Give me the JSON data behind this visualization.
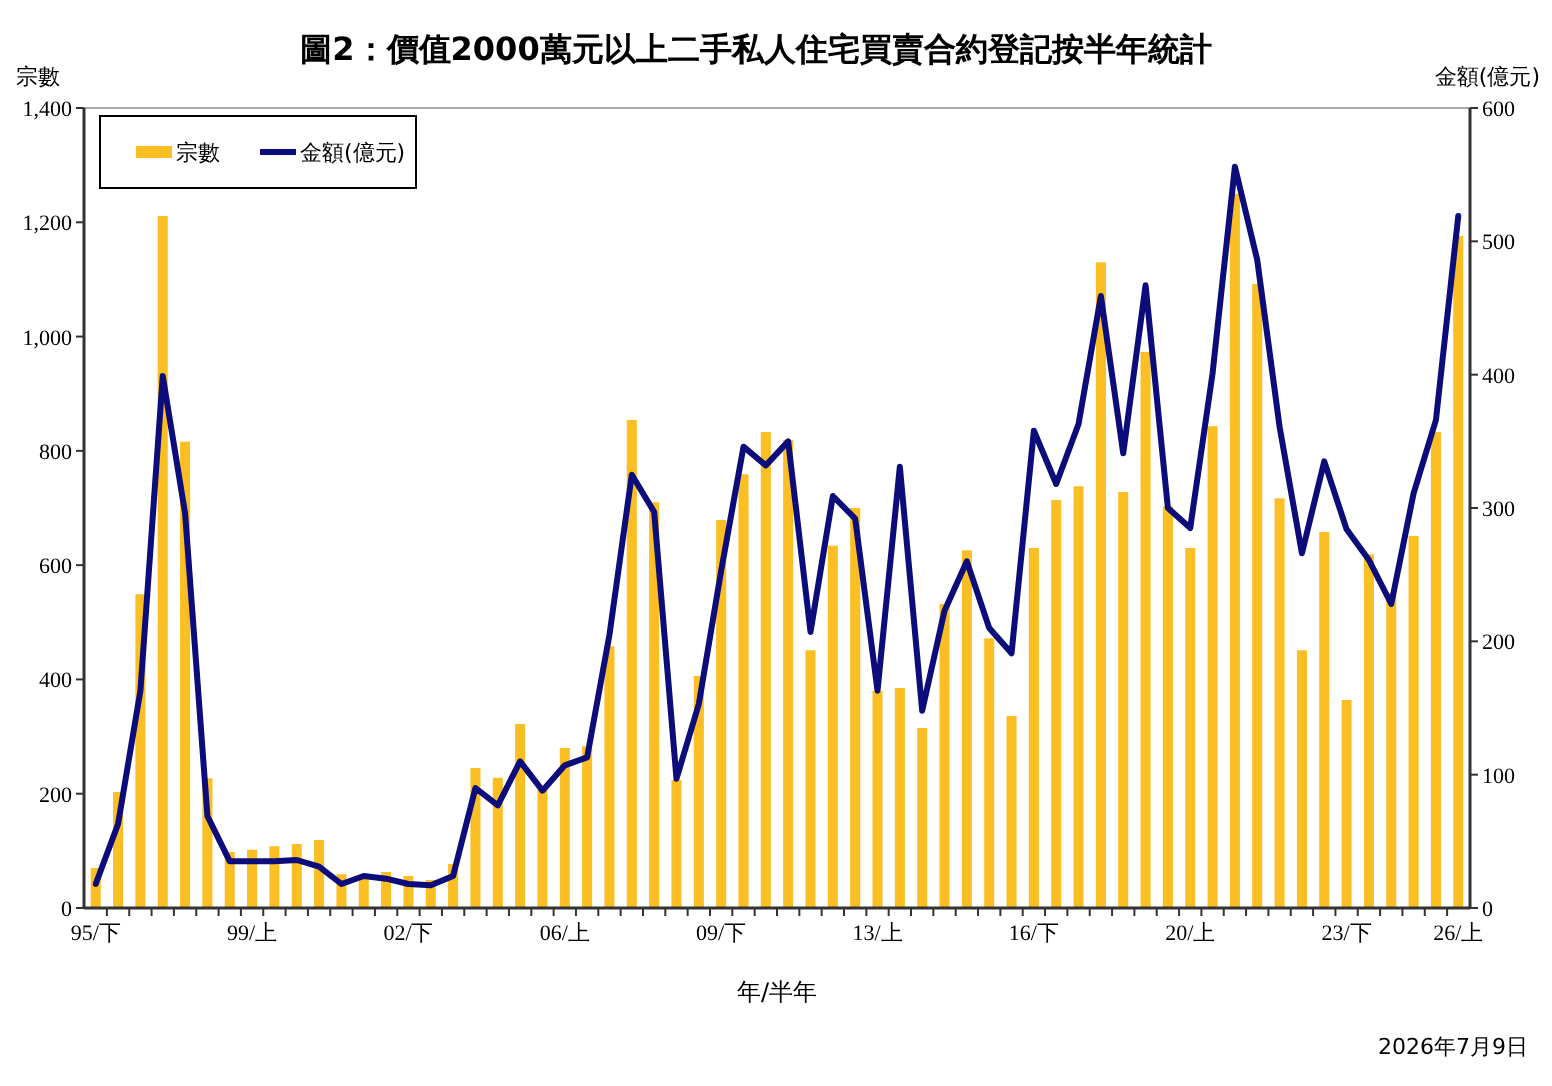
{
  "chart_data": {
    "type": "bar",
    "title": "圖2：價值2000萬元以上二手私人住宅買賣合約登記按半年統計",
    "xlabel": "年/半年",
    "ylabel": "宗數",
    "y2label": "金額(億元)",
    "categories": [
      "95/下",
      null,
      null,
      null,
      null,
      null,
      null,
      "99/上",
      null,
      null,
      null,
      null,
      null,
      null,
      "02/下",
      null,
      null,
      null,
      null,
      null,
      null,
      "06/上",
      null,
      null,
      null,
      null,
      null,
      null,
      "09/下",
      null,
      null,
      null,
      null,
      null,
      null,
      "13/上",
      null,
      null,
      null,
      null,
      null,
      null,
      "16/下",
      null,
      null,
      null,
      null,
      null,
      null,
      "20/上",
      null,
      null,
      null,
      null,
      null,
      null,
      "23/下",
      null,
      null,
      null,
      null,
      "26/上"
    ],
    "series": [
      {
        "name": "宗數",
        "color": "#fbbf24",
        "values": [
          70,
          203,
          549,
          1211,
          816,
          227,
          98,
          102,
          108,
          112,
          119,
          59,
          56,
          63,
          56,
          49,
          77,
          245,
          228,
          322,
          207,
          280,
          283,
          458,
          854,
          710,
          224,
          406,
          679,
          759,
          833,
          819,
          451,
          634,
          700,
          380,
          385,
          315,
          532,
          626,
          472,
          336,
          630,
          714,
          738,
          1130,
          728,
          973,
          703,
          630,
          843,
          1250,
          1092,
          717,
          451,
          658,
          364,
          619,
          551,
          651,
          833,
          1176
        ]
      },
      {
        "name": "金額(億元)",
        "type": "line",
        "axis": "y2",
        "color": "#0c0c7a",
        "values": [
          18,
          63,
          163,
          399,
          296,
          69,
          35,
          35,
          35,
          36,
          31,
          18,
          24,
          22,
          18,
          17,
          24,
          90,
          77,
          110,
          88,
          107,
          113,
          205,
          325,
          297,
          97,
          153,
          253,
          346,
          332,
          350,
          207,
          309,
          292,
          163,
          331,
          148,
          223,
          260,
          210,
          191,
          358,
          318,
          363,
          459,
          341,
          467,
          300,
          285,
          401,
          556,
          486,
          361,
          266,
          335,
          284,
          261,
          228,
          311,
          366,
          519
        ]
      }
    ],
    "ylim": [
      0,
      1400
    ],
    "yticks": [
      0,
      200,
      400,
      600,
      800,
      {
        "value": 1000,
        "label": "1,000"
      },
      {
        "value": 1200,
        "label": "1,200"
      },
      {
        "value": 1400,
        "label": "1,400"
      }
    ],
    "y2lim": [
      0,
      600
    ],
    "y2ticks": [
      0,
      100,
      200,
      300,
      400,
      500,
      600
    ],
    "legend": "top left",
    "annotations": [
      "2026年7月9日"
    ]
  }
}
